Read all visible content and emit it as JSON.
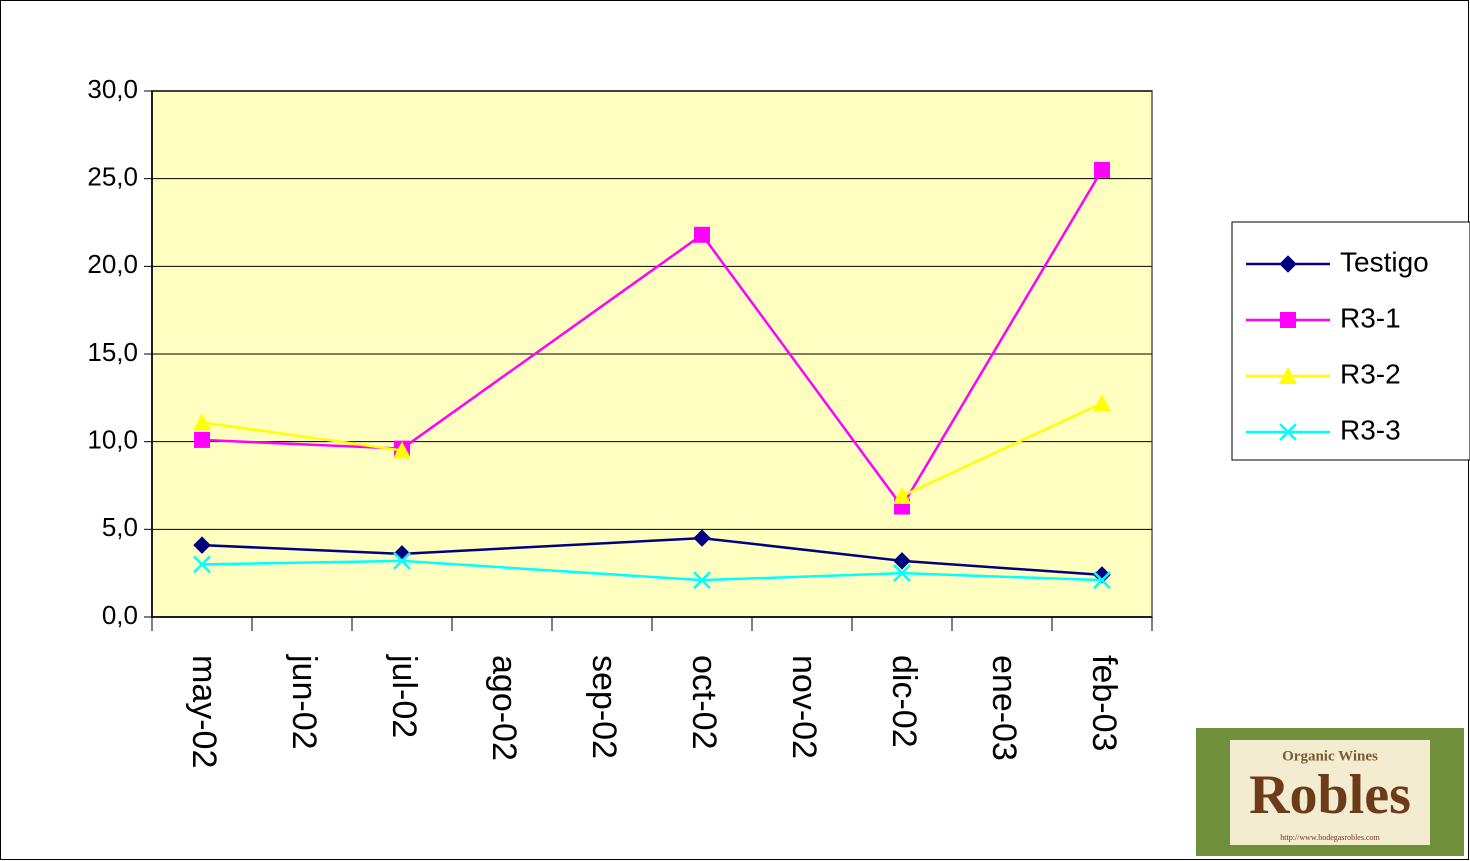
{
  "chart_data": {
    "type": "line",
    "x": [
      0,
      2,
      5,
      7,
      9
    ],
    "xlim": [
      -0.5,
      9.5
    ],
    "xticks": [
      {
        "value": 0,
        "label": "may-02"
      },
      {
        "value": 1,
        "label": "jun-02"
      },
      {
        "value": 2,
        "label": "jul-02"
      },
      {
        "value": 3,
        "label": "ago-02"
      },
      {
        "value": 4,
        "label": "sep-02"
      },
      {
        "value": 5,
        "label": "oct-02"
      },
      {
        "value": 6,
        "label": "nov-02"
      },
      {
        "value": 7,
        "label": "dic-02"
      },
      {
        "value": 8,
        "label": "ene-03"
      },
      {
        "value": 9,
        "label": "feb-03"
      }
    ],
    "ylim": [
      0,
      30
    ],
    "yticks": [
      {
        "value": 0,
        "label": "0,0"
      },
      {
        "value": 5,
        "label": "5,0"
      },
      {
        "value": 10,
        "label": "10,0"
      },
      {
        "value": 15,
        "label": "15,0"
      },
      {
        "value": 20,
        "label": "20,0"
      },
      {
        "value": 25,
        "label": "25,0"
      },
      {
        "value": 30,
        "label": "30,0"
      }
    ],
    "grid": true,
    "legend": "right",
    "series": [
      {
        "name": "Testigo",
        "color": "#000080",
        "marker": "diamond",
        "values": [
          4.1,
          3.6,
          4.5,
          3.2,
          2.4
        ]
      },
      {
        "name": "R3-1",
        "color": "#ff00ff",
        "marker": "square",
        "values": [
          10.1,
          9.6,
          21.8,
          6.3,
          25.5
        ]
      },
      {
        "name": "R3-2",
        "color": "#ffff00",
        "marker": "triangle",
        "values": [
          11.1,
          9.5,
          null,
          6.9,
          12.2
        ]
      },
      {
        "name": "R3-3",
        "color": "#00ffff",
        "marker": "x",
        "values": [
          3.0,
          3.2,
          2.1,
          2.5,
          2.1
        ]
      }
    ]
  },
  "logo": {
    "tagline": "Organic Wines",
    "name": "Robles",
    "url": "http://www.bodegasrobles.com"
  }
}
